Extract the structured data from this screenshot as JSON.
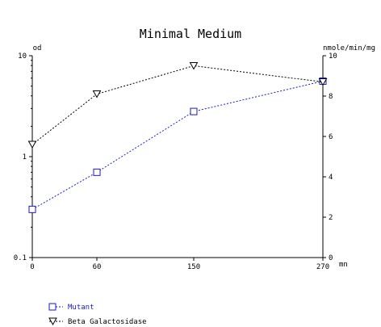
{
  "chart_data": {
    "type": "line",
    "title": "Minimal Medium",
    "x": [
      0,
      60,
      150,
      270
    ],
    "x_tick_labels": [
      "0",
      "60",
      "150",
      "270"
    ],
    "x_unit": "mn",
    "y_left": {
      "label": "od",
      "scale": "log",
      "range": [
        0.1,
        10
      ],
      "ticks": [
        "0.1",
        "1",
        "10"
      ]
    },
    "y_right": {
      "label": "nmole/min/mg",
      "scale": "linear",
      "range": [
        0,
        10
      ],
      "ticks": [
        "0",
        "2",
        "4",
        "6",
        "8",
        "10"
      ]
    },
    "series": [
      {
        "name": "Mutant",
        "axis": "left",
        "marker": "square",
        "color": "#1a1acc",
        "values": [
          0.3,
          0.7,
          2.8,
          5.6
        ]
      },
      {
        "name": "Beta Galactosidase",
        "axis": "right",
        "marker": "triangle-down",
        "color": "#000000",
        "values": [
          5.6,
          8.1,
          9.5,
          8.7
        ]
      }
    ],
    "grid": false,
    "legend_position": "bottom-left"
  }
}
